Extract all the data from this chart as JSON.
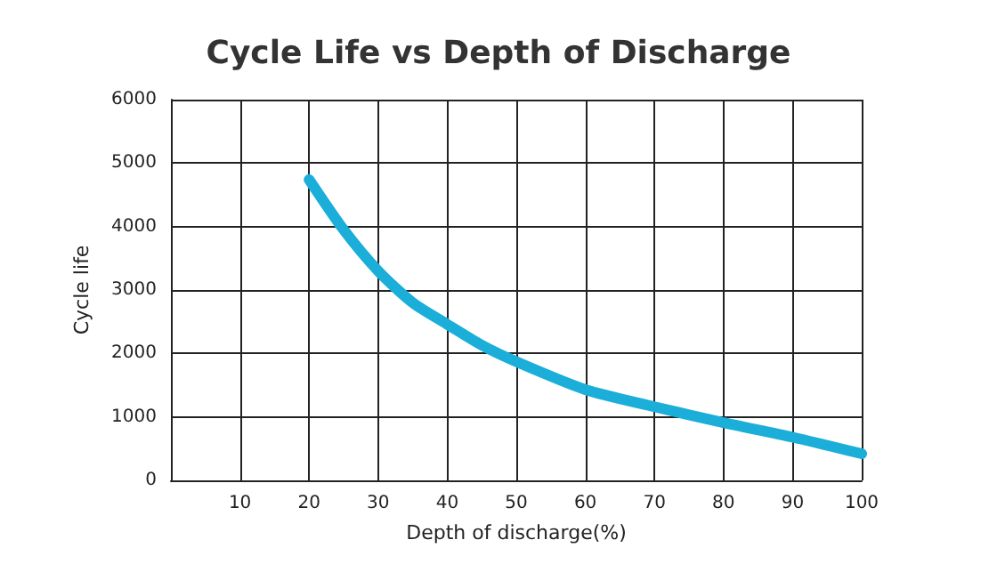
{
  "chart_data": {
    "type": "line",
    "title": "Cycle Life vs Depth of Discharge",
    "xlabel": "Depth of discharge(%)",
    "ylabel": "Cycle life",
    "x": [
      20,
      25,
      30,
      35,
      40,
      45,
      50,
      60,
      70,
      80,
      90,
      100
    ],
    "series": [
      {
        "color": "#1aaed8",
        "values": [
          4740,
          3950,
          3300,
          2800,
          2460,
          2130,
          1870,
          1430,
          1160,
          910,
          680,
          420
        ]
      }
    ],
    "xlim": [
      0,
      100
    ],
    "xticks": [
      10,
      20,
      30,
      40,
      50,
      60,
      70,
      80,
      90,
      100
    ],
    "ylim": [
      0,
      6000
    ],
    "yticks": [
      0,
      1000,
      2000,
      3000,
      4000,
      5000,
      6000
    ],
    "grid": true,
    "marker": "none",
    "line_style": "solid"
  }
}
